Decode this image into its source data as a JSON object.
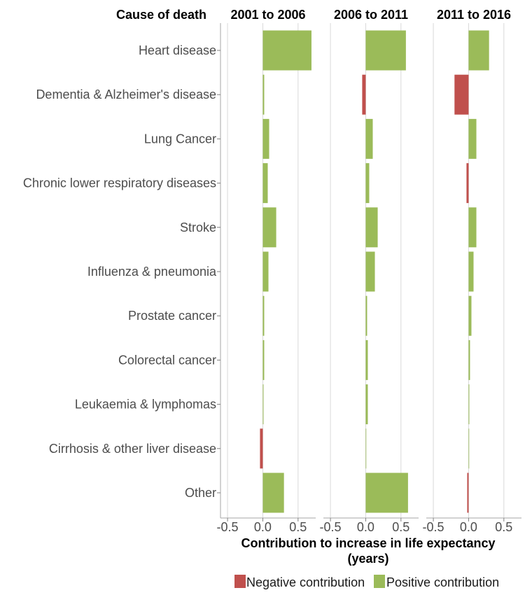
{
  "chart_data": {
    "type": "bar",
    "orientation": "horizontal",
    "category_header": "Cause of death",
    "categories": [
      "Heart disease",
      "Dementia & Alzheimer's disease",
      "Lung Cancer",
      "Chronic lower respiratory diseases",
      "Stroke",
      "Influenza & pneumonia",
      "Prostate cancer",
      "Colorectal cancer",
      "Leukaemia & lymphomas",
      "Cirrhosis & other liver disease",
      "Other"
    ],
    "panels": [
      {
        "title": "2001 to 2006",
        "values": [
          0.69,
          0.02,
          0.09,
          0.07,
          0.19,
          0.08,
          0.02,
          0.02,
          0.01,
          -0.04,
          0.3
        ]
      },
      {
        "title": "2006 to 2011",
        "values": [
          0.57,
          -0.05,
          0.1,
          0.05,
          0.17,
          0.13,
          0.02,
          0.03,
          0.03,
          0.005,
          0.6
        ]
      },
      {
        "title": "2011 to 2016",
        "values": [
          0.29,
          -0.2,
          0.11,
          -0.03,
          0.11,
          0.07,
          0.04,
          0.02,
          0.01,
          0.005,
          -0.02
        ]
      }
    ],
    "xlim": [
      -0.6,
      0.75
    ],
    "x_ticks": [
      -0.5,
      0.0,
      0.5
    ],
    "x_tick_labels": [
      "-0.5",
      "0.0",
      "0.5"
    ],
    "xlabel": "Contribution to increase in life expectancy (years)",
    "xlabel_lines": [
      "Contribution to increase in life expectancy",
      "(years)"
    ],
    "grid": "vertical",
    "legend_position": "bottom",
    "legend": [
      {
        "label": "Negative contribution",
        "color": "#c0504d"
      },
      {
        "label": "Positive contribution",
        "color": "#9bbb59"
      }
    ]
  }
}
